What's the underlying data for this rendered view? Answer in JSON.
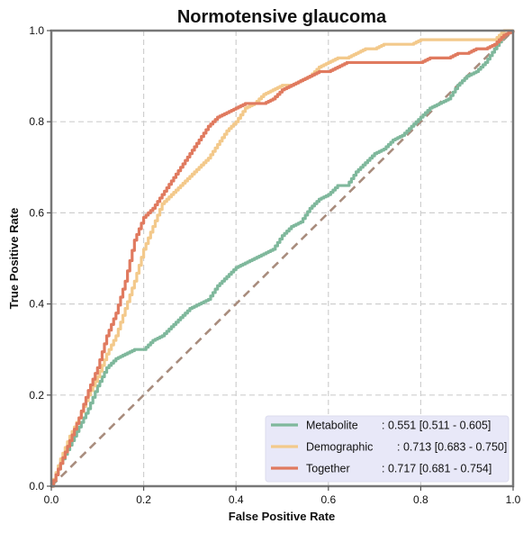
{
  "chart_data": {
    "type": "line",
    "title": "Normotensive glaucoma",
    "xlabel": "False Positive Rate",
    "ylabel": "True Positive Rate",
    "xlim": [
      0,
      1
    ],
    "ylim": [
      0,
      1
    ],
    "xticks": [
      "0.0",
      "0.2",
      "0.4",
      "0.6",
      "0.8",
      "1.0"
    ],
    "yticks": [
      "0.0",
      "0.2",
      "0.4",
      "0.6",
      "0.8",
      "1.0"
    ],
    "grid": true,
    "legend_position": "lower-right",
    "diagonal": {
      "x": [
        0,
        1
      ],
      "y": [
        0,
        1
      ],
      "color": "#a88c7d"
    },
    "series": [
      {
        "name": "Metabolite",
        "stat": ": 0.551 [0.511 - 0.605]",
        "color": "#7fb89c",
        "x": [
          0,
          0.02,
          0.04,
          0.06,
          0.08,
          0.1,
          0.12,
          0.14,
          0.16,
          0.18,
          0.2,
          0.22,
          0.24,
          0.26,
          0.28,
          0.3,
          0.32,
          0.34,
          0.36,
          0.38,
          0.4,
          0.42,
          0.44,
          0.46,
          0.48,
          0.5,
          0.52,
          0.54,
          0.56,
          0.58,
          0.6,
          0.62,
          0.64,
          0.66,
          0.68,
          0.7,
          0.72,
          0.74,
          0.76,
          0.78,
          0.8,
          0.82,
          0.84,
          0.86,
          0.88,
          0.9,
          0.92,
          0.94,
          0.96,
          0.98,
          1.0
        ],
        "y": [
          0,
          0.05,
          0.09,
          0.13,
          0.17,
          0.22,
          0.26,
          0.28,
          0.29,
          0.3,
          0.3,
          0.32,
          0.33,
          0.35,
          0.37,
          0.39,
          0.4,
          0.41,
          0.44,
          0.46,
          0.48,
          0.49,
          0.5,
          0.51,
          0.52,
          0.55,
          0.57,
          0.58,
          0.61,
          0.63,
          0.64,
          0.66,
          0.66,
          0.69,
          0.71,
          0.73,
          0.74,
          0.76,
          0.77,
          0.79,
          0.81,
          0.83,
          0.84,
          0.85,
          0.88,
          0.9,
          0.91,
          0.93,
          0.96,
          0.99,
          1.0
        ]
      },
      {
        "name": "Demographic",
        "stat": ": 0.713 [0.683 - 0.750]",
        "color": "#f3c98b",
        "x": [
          0,
          0.02,
          0.04,
          0.06,
          0.08,
          0.1,
          0.12,
          0.14,
          0.16,
          0.18,
          0.2,
          0.22,
          0.24,
          0.26,
          0.28,
          0.3,
          0.32,
          0.34,
          0.36,
          0.38,
          0.4,
          0.42,
          0.44,
          0.46,
          0.48,
          0.5,
          0.52,
          0.54,
          0.56,
          0.58,
          0.6,
          0.62,
          0.64,
          0.66,
          0.68,
          0.7,
          0.72,
          0.74,
          0.76,
          0.78,
          0.8,
          0.82,
          0.84,
          0.86,
          0.88,
          0.9,
          0.92,
          0.94,
          0.96,
          0.98,
          1.0
        ],
        "y": [
          0,
          0.06,
          0.11,
          0.15,
          0.2,
          0.24,
          0.29,
          0.33,
          0.39,
          0.45,
          0.52,
          0.57,
          0.62,
          0.64,
          0.66,
          0.68,
          0.7,
          0.72,
          0.75,
          0.78,
          0.8,
          0.83,
          0.84,
          0.86,
          0.87,
          0.88,
          0.88,
          0.89,
          0.9,
          0.92,
          0.93,
          0.94,
          0.94,
          0.95,
          0.96,
          0.96,
          0.97,
          0.97,
          0.97,
          0.97,
          0.98,
          0.98,
          0.98,
          0.98,
          0.98,
          0.98,
          0.98,
          0.98,
          0.98,
          1.0,
          1.0
        ]
      },
      {
        "name": "Together",
        "stat": ": 0.717 [0.681 - 0.754]",
        "color": "#e07a5f",
        "x": [
          0,
          0.02,
          0.04,
          0.06,
          0.08,
          0.1,
          0.12,
          0.14,
          0.16,
          0.18,
          0.2,
          0.22,
          0.24,
          0.26,
          0.28,
          0.3,
          0.32,
          0.34,
          0.36,
          0.38,
          0.4,
          0.42,
          0.44,
          0.46,
          0.48,
          0.5,
          0.52,
          0.54,
          0.56,
          0.58,
          0.6,
          0.62,
          0.64,
          0.66,
          0.68,
          0.7,
          0.72,
          0.74,
          0.76,
          0.78,
          0.8,
          0.82,
          0.84,
          0.86,
          0.88,
          0.9,
          0.92,
          0.94,
          0.96,
          0.98,
          1.0
        ],
        "y": [
          0,
          0.05,
          0.1,
          0.15,
          0.21,
          0.26,
          0.33,
          0.38,
          0.45,
          0.54,
          0.59,
          0.61,
          0.64,
          0.67,
          0.7,
          0.73,
          0.76,
          0.79,
          0.81,
          0.82,
          0.83,
          0.84,
          0.84,
          0.84,
          0.85,
          0.87,
          0.88,
          0.89,
          0.9,
          0.91,
          0.91,
          0.92,
          0.93,
          0.93,
          0.93,
          0.93,
          0.93,
          0.93,
          0.93,
          0.93,
          0.93,
          0.94,
          0.94,
          0.94,
          0.95,
          0.95,
          0.96,
          0.96,
          0.97,
          0.99,
          1.0
        ]
      }
    ]
  }
}
